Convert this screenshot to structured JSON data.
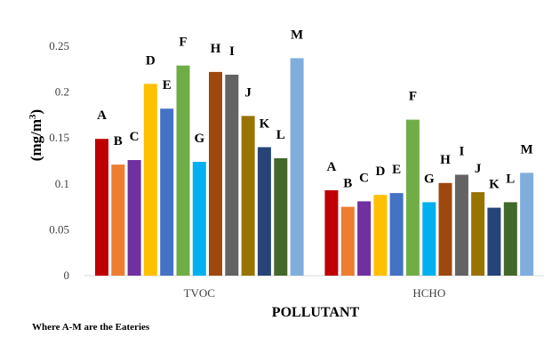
{
  "chart_data": {
    "type": "bar",
    "categories": [
      "TVOC",
      "HCHO"
    ],
    "series": [
      {
        "name": "A",
        "values": [
          0.149,
          0.093
        ],
        "color": "#c00000"
      },
      {
        "name": "B",
        "values": [
          0.121,
          0.075
        ],
        "color": "#ed7d31"
      },
      {
        "name": "C",
        "values": [
          0.126,
          0.081
        ],
        "color": "#7030a0"
      },
      {
        "name": "D",
        "values": [
          0.209,
          0.088
        ],
        "color": "#ffc000"
      },
      {
        "name": "E",
        "values": [
          0.182,
          0.09
        ],
        "color": "#4472c4"
      },
      {
        "name": "F",
        "values": [
          0.229,
          0.17
        ],
        "color": "#70ad47"
      },
      {
        "name": "G",
        "values": [
          0.124,
          0.08
        ],
        "color": "#00b0f0"
      },
      {
        "name": "H",
        "values": [
          0.222,
          0.101
        ],
        "color": "#9e480e"
      },
      {
        "name": "I",
        "values": [
          0.219,
          0.11
        ],
        "color": "#636363"
      },
      {
        "name": "J",
        "values": [
          0.174,
          0.091
        ],
        "color": "#997300"
      },
      {
        "name": "K",
        "values": [
          0.14,
          0.074
        ],
        "color": "#264478"
      },
      {
        "name": "L",
        "values": [
          0.128,
          0.08
        ],
        "color": "#43682b"
      },
      {
        "name": "M",
        "values": [
          0.237,
          0.112
        ],
        "color": "#7faedd"
      }
    ],
    "xlabel": "POLLUTANT",
    "ylabel_main": "(mg/m",
    "ylabel_sup": "3",
    "ylabel_close": ")",
    "ylim": [
      0,
      0.25
    ],
    "yticks": [
      "0",
      "0.05",
      "0.1",
      "0.15",
      "0.2",
      "0.25"
    ],
    "grid": false,
    "legend": "none"
  },
  "note": "Where A-M are the Eateries"
}
